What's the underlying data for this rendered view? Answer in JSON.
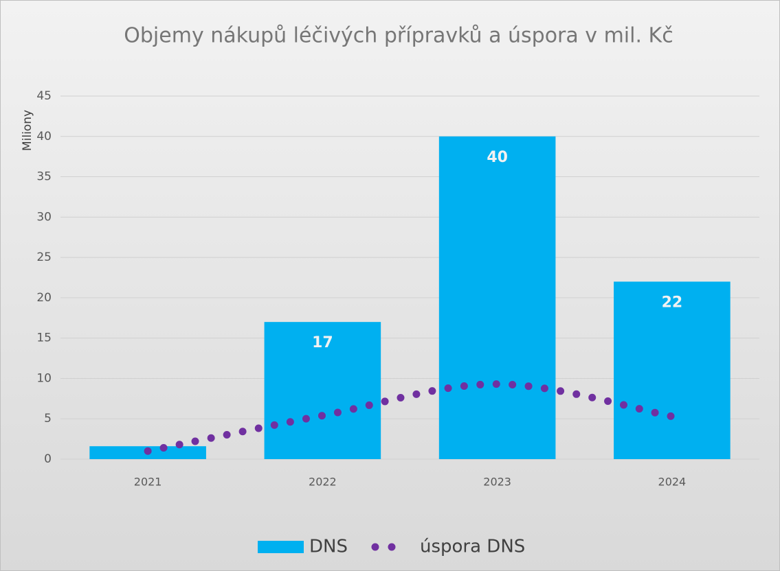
{
  "chart_data": {
    "type": "bar",
    "title": "Objemy nákupů léčivých přípravků a úspora v mil. Kč",
    "y_label": "Miliony",
    "categories": [
      "2021",
      "2022",
      "2023",
      "2024"
    ],
    "series": [
      {
        "name": "DNS",
        "type": "bar",
        "color": "#00b0f0",
        "values": [
          1.6,
          17,
          40,
          22
        ],
        "value_labels": [
          null,
          "17",
          "40",
          "22"
        ]
      },
      {
        "name": "úspora DNS",
        "type": "line",
        "color": "#7030a0",
        "values": [
          1.0,
          5.4,
          9.3,
          5.3
        ]
      }
    ],
    "ylim": [
      0,
      45
    ],
    "yticks": [
      0,
      5,
      10,
      15,
      20,
      25,
      30,
      35,
      40,
      45
    ],
    "grid": true,
    "legend": "bottom"
  }
}
